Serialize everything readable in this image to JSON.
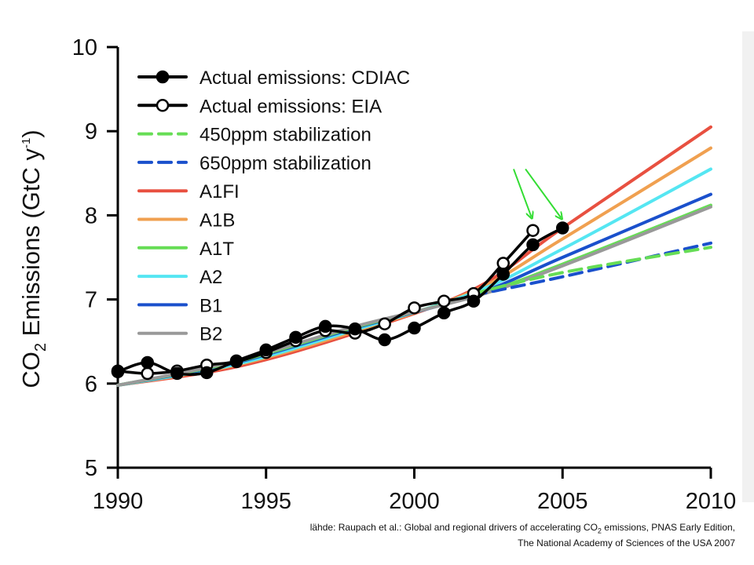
{
  "chart_data": {
    "type": "line",
    "title": "",
    "xlabel": "",
    "ylabel": {
      "main": "CO",
      "sub": "2",
      "rest": " Emissions (GtC y",
      "sup": "-1",
      "close": ")"
    },
    "xlim": [
      1990,
      2010
    ],
    "ylim": [
      5,
      10
    ],
    "x_ticks": [
      "1990",
      "1995",
      "2000",
      "2005",
      "2010"
    ],
    "y_ticks": [
      "5",
      "6",
      "7",
      "8",
      "9",
      "10"
    ],
    "legend_position": "top-left",
    "series": [
      {
        "name": "A1FI",
        "color": "#e85040",
        "style": "solid",
        "x": [
          1990,
          1994,
          1998,
          2002,
          2005,
          2010
        ],
        "y": [
          5.98,
          6.2,
          6.6,
          7.12,
          7.85,
          9.05
        ]
      },
      {
        "name": "A1B",
        "color": "#f0a050",
        "style": "solid",
        "x": [
          1990,
          1994,
          1998,
          2002,
          2005,
          2010
        ],
        "y": [
          5.98,
          6.22,
          6.62,
          7.1,
          7.72,
          8.8
        ]
      },
      {
        "name": "A2",
        "color": "#55e6f2",
        "style": "solid",
        "x": [
          1990,
          1994,
          1998,
          2002,
          2005,
          2010
        ],
        "y": [
          5.98,
          6.23,
          6.64,
          7.08,
          7.6,
          8.55
        ]
      },
      {
        "name": "B1",
        "color": "#1a50cc",
        "style": "solid",
        "x": [
          1990,
          1994,
          1998,
          2002,
          2005,
          2010
        ],
        "y": [
          5.98,
          6.25,
          6.66,
          7.05,
          7.5,
          8.25
        ]
      },
      {
        "name": "A1T",
        "color": "#66dd55",
        "style": "solid",
        "x": [
          1990,
          1994,
          1998,
          2002,
          2005,
          2010
        ],
        "y": [
          5.98,
          6.26,
          6.67,
          7.04,
          7.42,
          8.12
        ]
      },
      {
        "name": "B2",
        "color": "#999999",
        "style": "solid",
        "x": [
          1990,
          1994,
          1998,
          2002,
          2005,
          2010
        ],
        "y": [
          5.98,
          6.27,
          6.68,
          7.03,
          7.4,
          8.1
        ]
      },
      {
        "name": "650ppm stabilization",
        "color": "#1a50cc",
        "style": "dashed",
        "x": [
          2002,
          2005,
          2010
        ],
        "y": [
          7.05,
          7.27,
          7.67
        ]
      },
      {
        "name": "450ppm stabilization",
        "color": "#66dd55",
        "style": "dashed",
        "x": [
          2002,
          2005,
          2010
        ],
        "y": [
          7.07,
          7.32,
          7.62
        ]
      },
      {
        "name": "Actual emissions: EIA",
        "color": "#000000",
        "style": "solid",
        "marker": "open-circle",
        "x": [
          1990,
          1991,
          1992,
          1993,
          1994,
          1995,
          1996,
          1997,
          1998,
          1999,
          2000,
          2001,
          2002,
          2003,
          2004
        ],
        "y": [
          6.15,
          6.12,
          6.15,
          6.22,
          6.26,
          6.37,
          6.51,
          6.63,
          6.6,
          6.71,
          6.9,
          6.98,
          7.07,
          7.43,
          7.82
        ]
      },
      {
        "name": "Actual emissions: CDIAC",
        "color": "#000000",
        "style": "solid",
        "marker": "filled-circle",
        "x": [
          1990,
          1991,
          1992,
          1993,
          1994,
          1995,
          1996,
          1997,
          1998,
          1999,
          2000,
          2001,
          2002,
          2003,
          2004,
          2005
        ],
        "y": [
          6.14,
          6.25,
          6.12,
          6.13,
          6.27,
          6.4,
          6.55,
          6.68,
          6.65,
          6.52,
          6.66,
          6.84,
          6.98,
          7.3,
          7.65,
          7.85
        ]
      }
    ],
    "legend": [
      {
        "label": "Actual emissions: CDIAC",
        "color": "#000000",
        "style": "solid",
        "marker": "filled-circle"
      },
      {
        "label": "Actual emissions: EIA",
        "color": "#000000",
        "style": "solid",
        "marker": "open-circle"
      },
      {
        "label": "450ppm stabilization",
        "color": "#66dd55",
        "style": "dashed"
      },
      {
        "label": "650ppm stabilization",
        "color": "#1a50cc",
        "style": "dashed"
      },
      {
        "label": "A1FI",
        "color": "#e85040",
        "style": "solid"
      },
      {
        "label": "A1B",
        "color": "#f0a050",
        "style": "solid"
      },
      {
        "label": "A1T",
        "color": "#66dd55",
        "style": "solid"
      },
      {
        "label": "A2",
        "color": "#55e6f2",
        "style": "solid"
      },
      {
        "label": "B1",
        "color": "#1a50cc",
        "style": "solid"
      },
      {
        "label": "B2",
        "color": "#999999",
        "style": "solid"
      }
    ],
    "annotations": [
      {
        "type": "arrow",
        "color": "#33dd33",
        "from": [
          2003.35,
          8.55
        ],
        "to": [
          2003.95,
          7.98
        ]
      },
      {
        "type": "arrow",
        "color": "#33dd33",
        "from": [
          2003.75,
          8.55
        ],
        "to": [
          2004.95,
          7.97
        ]
      }
    ]
  },
  "source": {
    "prefix": "lähde: Raupach et al.: Global and regional drivers of accelerating CO",
    "sub": "2",
    "suffix": " emissions, PNAS Early Edition,",
    "line2": "The National Academy of Sciences of the USA 2007"
  }
}
